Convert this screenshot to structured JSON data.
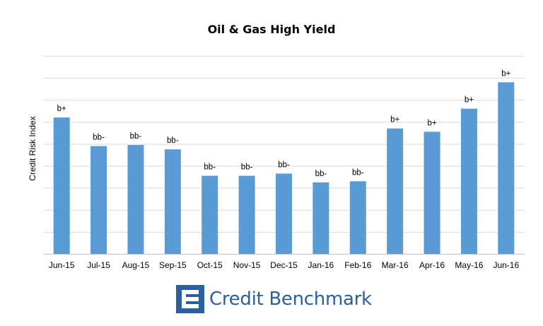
{
  "chart_data": {
    "type": "bar",
    "title": "Oil & Gas High Yield",
    "ylabel": "Credit Risk Index",
    "xlabel": "",
    "categories": [
      "Jun-15",
      "Jul-15",
      "Aug-15",
      "Sep-15",
      "Oct-15",
      "Nov-15",
      "Dec-15",
      "Jan-16",
      "Feb-16",
      "Mar-16",
      "Apr-16",
      "May-16",
      "Jun-16"
    ],
    "values": [
      6.2,
      4.9,
      4.95,
      4.75,
      3.55,
      3.55,
      3.65,
      3.25,
      3.3,
      5.7,
      5.55,
      6.6,
      7.8
    ],
    "data_labels": [
      "b+",
      "bb-",
      "bb-",
      "bb-",
      "bb-",
      "bb-",
      "bb-",
      "bb-",
      "bb-",
      "b+",
      "b+",
      "b+",
      "b+"
    ],
    "ylim": [
      0,
      9
    ],
    "y_tick_labels_shown": false,
    "grid": true,
    "bar_color": "#5b9bd5",
    "grid_color": "#d9d9d9"
  },
  "branding": {
    "name": "Credit Benchmark",
    "logo_icon": "credit-benchmark-logo-icon",
    "color": "#2b5f9e"
  }
}
